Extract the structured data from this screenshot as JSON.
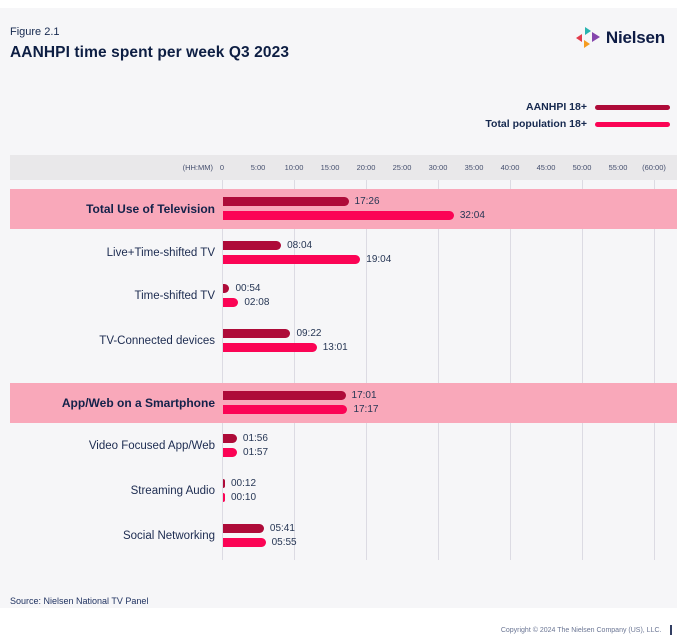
{
  "header": {
    "figure_label": "Figure 2.1",
    "title": "AANHPI time spent per week Q3 2023",
    "brand": "Nielsen"
  },
  "legend": {
    "items": [
      {
        "label": "AANHPI 18+",
        "color": "#ae0b39"
      },
      {
        "label": "Total population 18+",
        "color": "#fb0455"
      }
    ]
  },
  "chart_data": {
    "type": "bar",
    "orientation": "horizontal",
    "title": "AANHPI time spent per week Q3 2023",
    "unit_label": "(HH:MM)",
    "categories": [
      "Total Use of Television",
      "Live+Time-shifted TV",
      "Time-shifted TV",
      "TV-Connected devices",
      "App/Web on a Smartphone",
      "Video Focused App/Web",
      "Streaming Audio",
      "Social Networking"
    ],
    "highlighted": [
      true,
      false,
      false,
      false,
      true,
      false,
      false,
      false
    ],
    "series": [
      {
        "name": "AANHPI 18+",
        "color": "#ae0b39",
        "values": [
          "17:26",
          "08:04",
          "00:54",
          "09:22",
          "17:01",
          "01:56",
          "00:12",
          "05:41"
        ]
      },
      {
        "name": "Total population 18+",
        "color": "#fb0455",
        "values": [
          "32:04",
          "19:04",
          "02:08",
          "13:01",
          "17:17",
          "01:57",
          "00:10",
          "05:55"
        ]
      }
    ],
    "x_axis": {
      "label": "(HH:MM)",
      "ticks": [
        "0",
        "5:00",
        "10:00",
        "15:00",
        "20:00",
        "25:00",
        "30:00",
        "35:00",
        "40:00",
        "45:00",
        "50:00",
        "55:00",
        "(60:00)"
      ],
      "min_hours": 0,
      "max_hours": 60,
      "tick_every_hours": 5,
      "gridline_every_hours": 10,
      "grid": true
    },
    "legend_position": "top-right",
    "highlight_color": "#f9a8ba"
  },
  "footer": {
    "source": "Source: Nielsen National TV Panel",
    "copyright": "Copyright © 2024 The Nielsen Company (US), LLC.",
    "page_number": "1"
  }
}
